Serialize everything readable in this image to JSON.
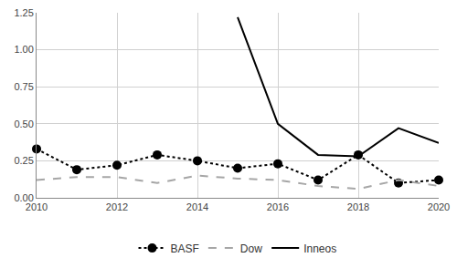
{
  "chart_data": {
    "type": "line",
    "x": [
      2010,
      2011,
      2012,
      2013,
      2014,
      2015,
      2016,
      2017,
      2018,
      2019,
      2020
    ],
    "series": [
      {
        "name": "BASF",
        "color": "#000000",
        "marker": "circle",
        "line_style": "dot",
        "values": [
          0.33,
          0.19,
          0.22,
          0.29,
          0.25,
          0.2,
          0.23,
          0.12,
          0.29,
          0.1,
          0.12
        ]
      },
      {
        "name": "Dow",
        "color": "#a6a6a6",
        "marker": "none",
        "line_style": "dash",
        "values": [
          0.12,
          0.14,
          0.14,
          0.1,
          0.15,
          0.13,
          0.12,
          0.08,
          0.06,
          0.12,
          0.08
        ]
      },
      {
        "name": "Inneos",
        "color": "#000000",
        "marker": "none",
        "line_style": "solid",
        "values": [
          null,
          null,
          null,
          null,
          null,
          1.22,
          0.5,
          0.29,
          0.28,
          0.47,
          0.37
        ]
      }
    ],
    "xlim": [
      2010,
      2020
    ],
    "xticks": [
      2010,
      2012,
      2014,
      2016,
      2018,
      2020
    ],
    "ylim": [
      0,
      1.25
    ],
    "yticks": [
      {
        "value": 0,
        "label": "0.00"
      },
      {
        "value": 0.25,
        "label": "0.25"
      },
      {
        "value": 0.5,
        "label": "0.50"
      },
      {
        "value": 0.75,
        "label": "0.75"
      },
      {
        "value": 1,
        "label": "1.00"
      },
      {
        "value": 1.25,
        "label": "1.25"
      }
    ],
    "grid": true,
    "legend": "bottom"
  }
}
